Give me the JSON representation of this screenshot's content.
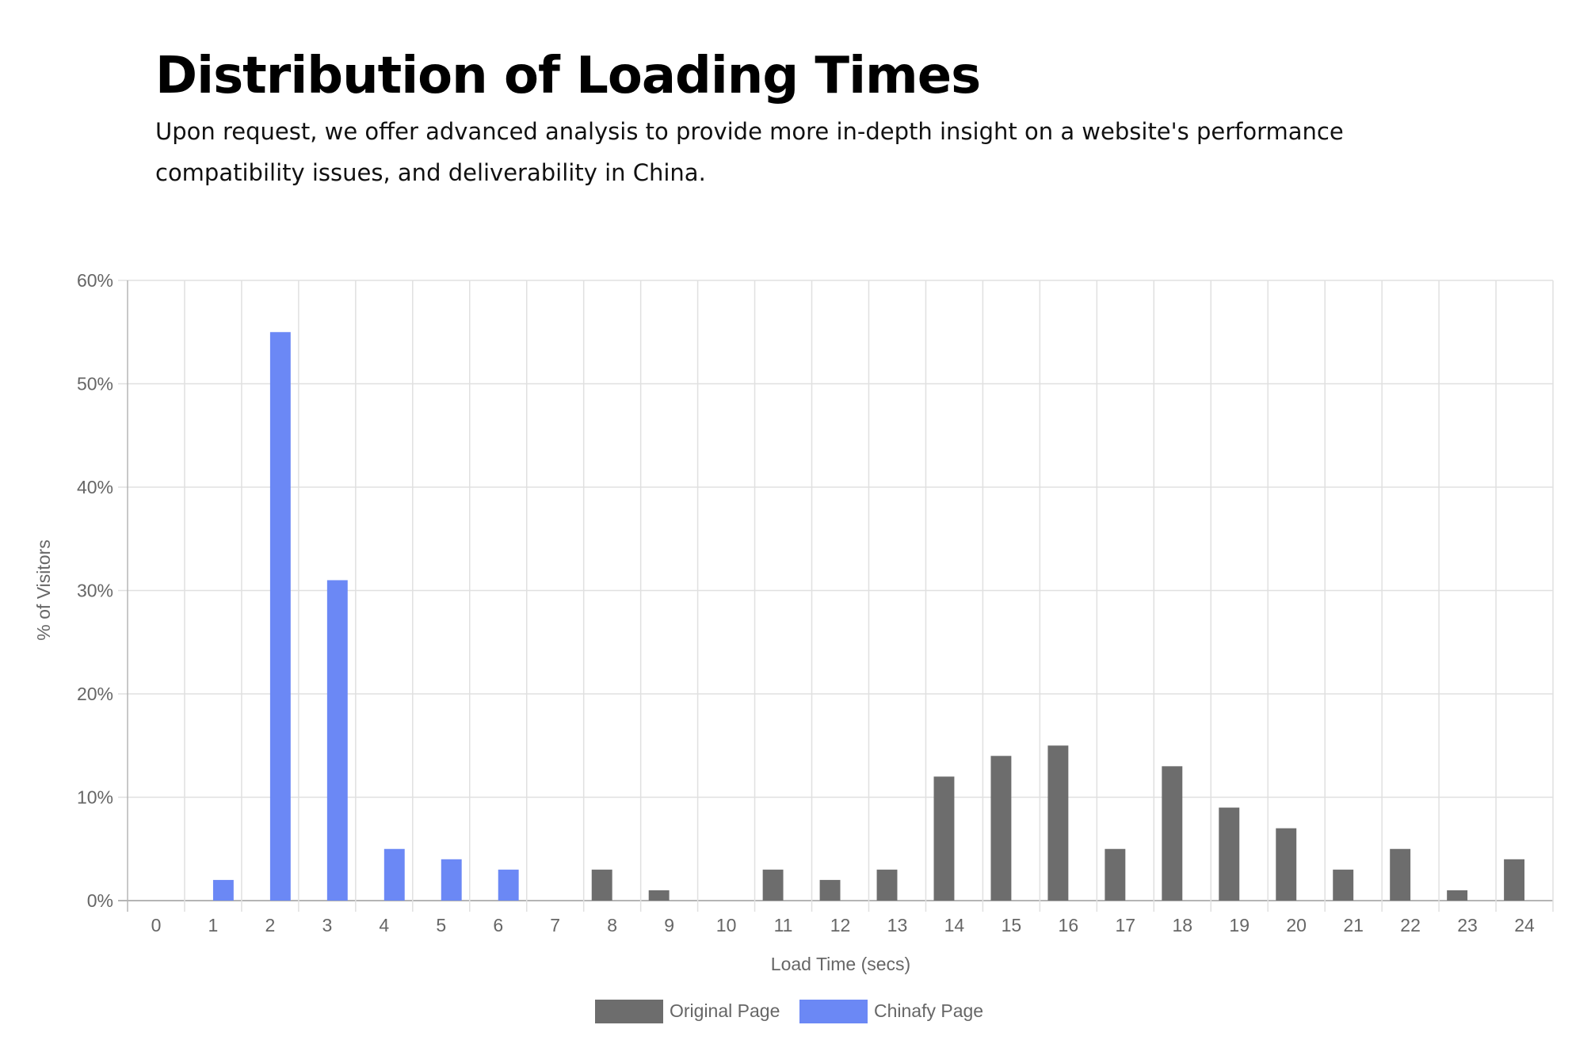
{
  "header": {
    "title": "Distribution of Loading Times",
    "subtitle": "Upon request, we offer advanced analysis to provide more in-depth insight on a website's performance compatibility issues, and deliverability in China."
  },
  "colors": {
    "original": "#6d6d6d",
    "chinafy": "#6b88f5",
    "grid": "#e0e0e0",
    "axis": "#b5b5b5"
  },
  "chart_data": {
    "type": "bar",
    "xlabel": "Load Time (secs)",
    "ylabel": "% of Visitors",
    "ylim": [
      0,
      60
    ],
    "yticks": [
      "0%",
      "10%",
      "20%",
      "30%",
      "40%",
      "50%",
      "60%"
    ],
    "categories": [
      "0",
      "1",
      "2",
      "3",
      "4",
      "5",
      "6",
      "7",
      "8",
      "9",
      "10",
      "11",
      "12",
      "13",
      "14",
      "15",
      "16",
      "17",
      "18",
      "19",
      "20",
      "21",
      "22",
      "23",
      "24"
    ],
    "grid": true,
    "legend_position": "bottom",
    "series": [
      {
        "name": "Original Page",
        "values": [
          0,
          0,
          0,
          0,
          0,
          0,
          0,
          0,
          3,
          1,
          0,
          3,
          2,
          3,
          12,
          14,
          15,
          5,
          13,
          9,
          7,
          3,
          5,
          1,
          4
        ]
      },
      {
        "name": "Chinafy Page",
        "values": [
          0,
          2,
          55,
          31,
          5,
          4,
          3,
          0,
          0,
          0,
          0,
          0,
          0,
          0,
          0,
          0,
          0,
          0,
          0,
          0,
          0,
          0,
          0,
          0,
          0
        ]
      }
    ]
  }
}
